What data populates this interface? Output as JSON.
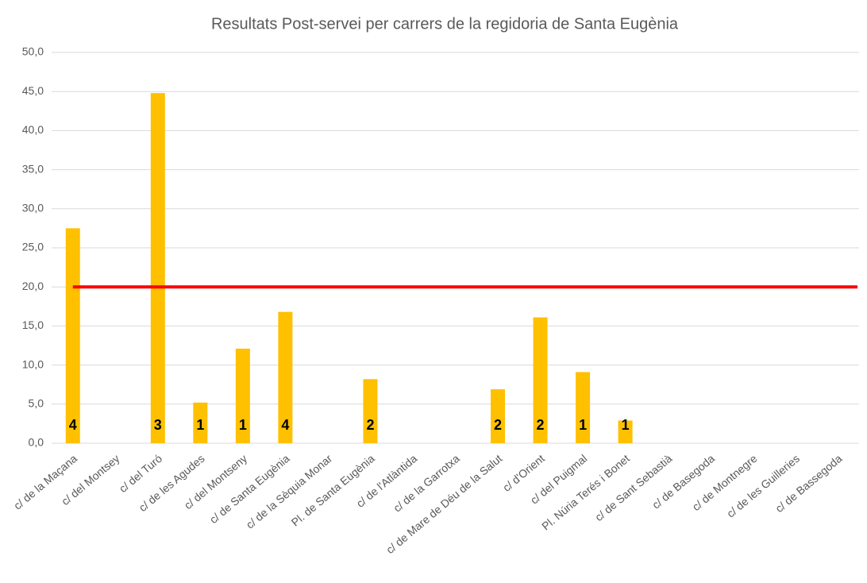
{
  "chart_data": {
    "type": "bar",
    "title": "Resultats Post-servei per carrers de la regidoria de Santa Eugènia",
    "categories": [
      "c/ de la Maçana",
      "c/ del Montsey",
      "c/ del Turó",
      "c/ de les Agudes",
      "c/ del Montseny",
      "c/ de Santa Eugènia",
      "c/ de la Sèquia Monar",
      "Pl. de Santa Eugènia",
      "c/ de l'Atlàntida",
      "c/ de la Garrotxa",
      "c/ de Mare de Déu de la Salut",
      "c/ d'Orient",
      "c/ del Puigmal",
      "Pl. Núria Terés i Bonet",
      "c/ de Sant Sebastià",
      "c/ de Basegoda",
      "c/ de Montnegre",
      "c/ de les Guilleries",
      "c/ de Bassegoda"
    ],
    "values": [
      27.5,
      null,
      44.8,
      5.2,
      12.1,
      16.8,
      null,
      8.2,
      null,
      null,
      6.9,
      16.1,
      9.1,
      2.9,
      null,
      null,
      null,
      null,
      null
    ],
    "bar_labels": [
      4,
      null,
      3,
      1,
      1,
      4,
      null,
      2,
      null,
      null,
      2,
      2,
      1,
      1,
      null,
      null,
      null,
      null,
      null
    ],
    "color": "#ffc000",
    "reference_line": {
      "value": 20,
      "color": "#ff0000"
    },
    "ylim": [
      0,
      50
    ],
    "yticks": [
      {
        "value": 0,
        "label": "0,0"
      },
      {
        "value": 5,
        "label": "5,0"
      },
      {
        "value": 10,
        "label": "10,0"
      },
      {
        "value": 15,
        "label": "15,0"
      },
      {
        "value": 20,
        "label": "20,0"
      },
      {
        "value": 25,
        "label": "25,0"
      },
      {
        "value": 30,
        "label": "30,0"
      },
      {
        "value": 35,
        "label": "35,0"
      },
      {
        "value": 40,
        "label": "40,0"
      },
      {
        "value": 45,
        "label": "45,0"
      },
      {
        "value": 50,
        "label": "50,0"
      }
    ],
    "grid": true
  }
}
